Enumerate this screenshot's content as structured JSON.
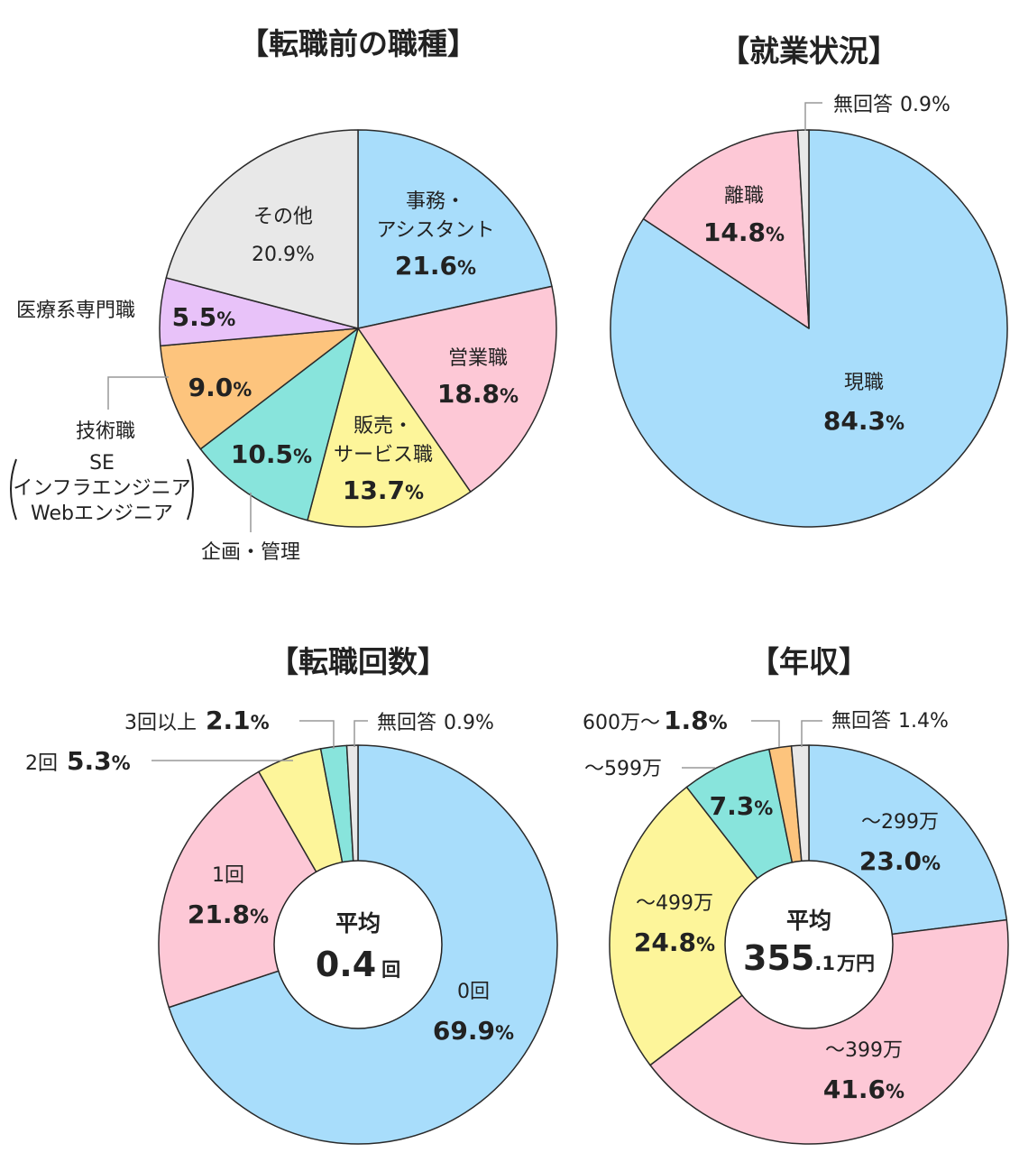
{
  "chart_data": [
    {
      "type": "pie",
      "title": "【転職前の職種】",
      "slices": [
        {
          "label": "事務・アシスタント",
          "label_lines": [
            "事務・",
            "アシスタント"
          ],
          "value": 21.6,
          "color": "#a8ddfb"
        },
        {
          "label": "営業職",
          "label_lines": [
            "営業職"
          ],
          "value": 18.8,
          "color": "#fdc8d6"
        },
        {
          "label": "販売・サービス職",
          "label_lines": [
            "販売・",
            "サービス職"
          ],
          "value": 13.7,
          "color": "#fdf59a"
        },
        {
          "label": "企画・管理",
          "label_lines": [],
          "outside_label": "企画・管理",
          "value": 10.5,
          "color": "#88e4dc"
        },
        {
          "label": "技術職",
          "label_lines": [],
          "outside_label": "技術職",
          "outside_sub": [
            "SE",
            "インフラエンジニア",
            "Webエンジニア"
          ],
          "value": 9.0,
          "color": "#fdc47d"
        },
        {
          "label": "医療系専門職",
          "label_lines": [],
          "outside_label": "医療系専門職",
          "value": 5.5,
          "color": "#e8c2f9"
        },
        {
          "label": "その他",
          "label_lines": [
            "その他"
          ],
          "value": 20.9,
          "color": "#e8e8e8",
          "light_value": true
        }
      ]
    },
    {
      "type": "pie",
      "title": "【就業状況】",
      "slices": [
        {
          "label": "現職",
          "label_lines": [
            "現職"
          ],
          "value": 84.3,
          "color": "#a8ddfb"
        },
        {
          "label": "離職",
          "label_lines": [
            "離職"
          ],
          "value": 14.8,
          "color": "#fdc8d6"
        },
        {
          "label": "無回答",
          "outside_label": "無回答",
          "value": 0.9,
          "color": "#e8e8e8"
        }
      ]
    },
    {
      "type": "donut",
      "title": "【転職回数】",
      "center_label": "平均",
      "center_value": "0.4",
      "center_unit": "回",
      "slices": [
        {
          "label": "0回",
          "label_lines": [
            "0回"
          ],
          "value": 69.9,
          "color": "#a8ddfb"
        },
        {
          "label": "1回",
          "label_lines": [
            "1回"
          ],
          "value": 21.8,
          "color": "#fdc8d6"
        },
        {
          "label": "2回",
          "outside_label": "2回",
          "value": 5.3,
          "color": "#fdf59a"
        },
        {
          "label": "3回以上",
          "outside_label": "3回以上",
          "value": 2.1,
          "color": "#88e4dc"
        },
        {
          "label": "無回答",
          "outside_label": "無回答",
          "value": 0.9,
          "color": "#e8e8e8"
        }
      ]
    },
    {
      "type": "donut",
      "title": "【年収】",
      "center_label": "平均",
      "center_value": "355",
      "center_value_small": ".1",
      "center_unit": "万円",
      "slices": [
        {
          "label": "～299万",
          "label_lines": [
            "～299万"
          ],
          "value": 23.0,
          "color": "#a8ddfb"
        },
        {
          "label": "～399万",
          "label_lines": [
            "～399万"
          ],
          "value": 41.6,
          "color": "#fdc8d6"
        },
        {
          "label": "～499万",
          "label_lines": [
            "～499万"
          ],
          "value": 24.8,
          "color": "#fdf59a"
        },
        {
          "label": "～599万",
          "label_lines": [],
          "outside_label": "～599万",
          "value": 7.3,
          "color": "#88e4dc"
        },
        {
          "label": "600万～",
          "outside_label": "600万～",
          "value": 1.8,
          "color": "#fdc47d"
        },
        {
          "label": "無回答",
          "outside_label": "無回答",
          "value": 1.4,
          "color": "#e8e8e8"
        }
      ]
    }
  ]
}
